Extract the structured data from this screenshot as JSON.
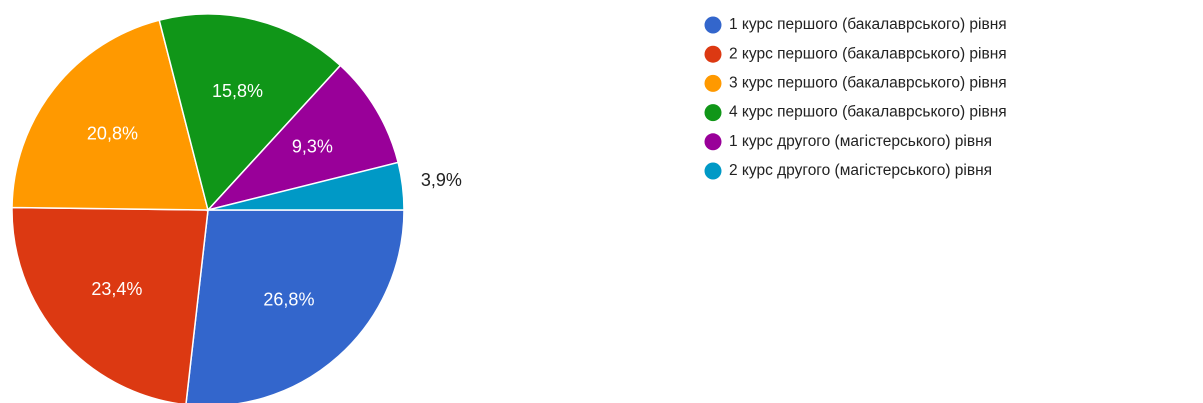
{
  "chart_data": {
    "type": "pie",
    "categories": [
      "1 курс першого (бакалаврського) рівня",
      "2 курс першого (бакалаврського) рівня",
      "3 курс першого (бакалаврського) рівня",
      "4 курс першого (бакалаврського) рівня",
      "1 курс другого (магістерського) рівня",
      "2 курс другого (магістерського) рівня"
    ],
    "values": [
      26.8,
      23.4,
      20.8,
      15.8,
      9.3,
      3.9
    ],
    "value_labels": [
      "26,8%",
      "23,4%",
      "20,8%",
      "15,8%",
      "9,3%",
      "3,9%"
    ],
    "colors": [
      "#3366cc",
      "#dc3912",
      "#ff9900",
      "#109618",
      "#990099",
      "#0099c6"
    ],
    "legend": "right"
  }
}
